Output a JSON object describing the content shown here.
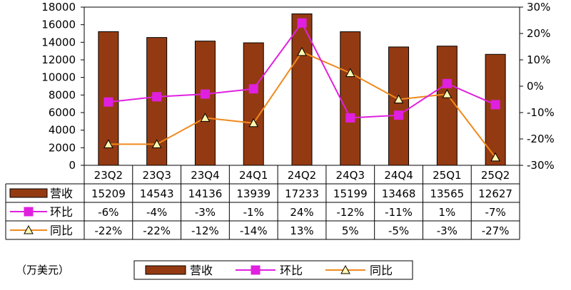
{
  "chart_data": {
    "type": "bar",
    "categories": [
      "23Q2",
      "23Q3",
      "23Q4",
      "24Q1",
      "24Q2",
      "24Q3",
      "24Q4",
      "25Q1",
      "25Q2"
    ],
    "series": [
      {
        "name": "营收",
        "kind": "bar",
        "axis": "left",
        "values": [
          15209,
          14543,
          14136,
          13939,
          17233,
          15199,
          13468,
          13565,
          12627
        ],
        "labels": [
          "15209",
          "14543",
          "14136",
          "13939",
          "17233",
          "15199",
          "13468",
          "13565",
          "12627"
        ],
        "color": "#943a12"
      },
      {
        "name": "环比",
        "kind": "line",
        "axis": "right",
        "marker": "square",
        "values": [
          -6,
          -4,
          -3,
          -1,
          24,
          -12,
          -11,
          1,
          -7
        ],
        "labels": [
          "-6%",
          "-4%",
          "-3%",
          "-1%",
          "24%",
          "-12%",
          "-11%",
          "1%",
          "-7%"
        ],
        "color": "#e020e0"
      },
      {
        "name": "同比",
        "kind": "line",
        "axis": "right",
        "marker": "triangle",
        "values": [
          -22,
          -22,
          -12,
          -14,
          13,
          5,
          -5,
          -3,
          -27
        ],
        "labels": [
          "-22%",
          "-22%",
          "-12%",
          "-14%",
          "13%",
          "5%",
          "-5%",
          "-3%",
          "-27%"
        ],
        "color": "#f08a1e"
      }
    ],
    "ylim_left": [
      0,
      18000
    ],
    "yticks_left": [
      "0",
      "2000",
      "4000",
      "6000",
      "8000",
      "10000",
      "12000",
      "14000",
      "16000",
      "18000"
    ],
    "ylim_right": [
      -30,
      30
    ],
    "yticks_right": [
      "-30%",
      "-20%",
      "-10%",
      "0%",
      "10%",
      "20%",
      "30%"
    ],
    "unit_label": "（万美元）",
    "legend": [
      "营收",
      "环比",
      "同比"
    ],
    "legend_position": "bottom"
  }
}
